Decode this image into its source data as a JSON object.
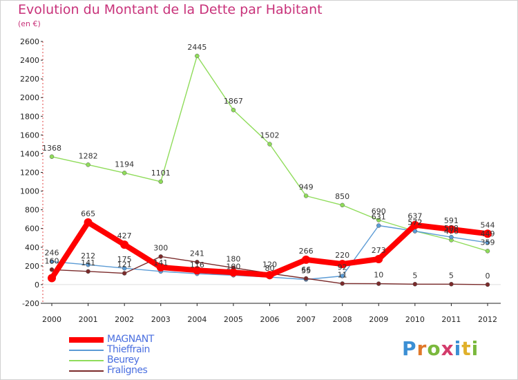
{
  "header": {
    "title": "Evolution du Montant de la Dette par Habitant",
    "subtitle": "(en €)"
  },
  "logo": {
    "text": "Proxiti",
    "letter_colors": [
      "#3b8fd4",
      "#e0782a",
      "#7ab83c",
      "#d33b6b",
      "#3b8fd4",
      "#e0b02a",
      "#7ab83c"
    ]
  },
  "chart_data": {
    "type": "line",
    "categories": [
      "2000",
      "2001",
      "2002",
      "2003",
      "2004",
      "2005",
      "2006",
      "2007",
      "2008",
      "2009",
      "2010",
      "2011",
      "2012"
    ],
    "ylim": [
      -200,
      2600
    ],
    "yticks": [
      -200,
      0,
      200,
      400,
      600,
      800,
      1000,
      1200,
      1400,
      1600,
      1800,
      2000,
      2200,
      2400,
      2600
    ],
    "grid": false,
    "legend_position": "bottom-left",
    "series": [
      {
        "name": "MAGNANT",
        "color": "#ff0000",
        "values": [
          70,
          665,
          427,
          185,
          153,
          130,
          102,
          266,
          220,
          273,
          637,
          591,
          544
        ],
        "labels": [
          "",
          "665",
          "427",
          "",
          "",
          "",
          "",
          "266",
          "220",
          "273",
          "637",
          "591",
          "544"
        ]
      },
      {
        "name": "Thieffrain",
        "color": "#5b9bd5",
        "values": [
          246,
          212,
          175,
          141,
          116,
          100,
          80,
          55,
          92,
          631,
          572,
          508,
          449
        ],
        "labels": [
          "246",
          "212",
          "175",
          "141",
          "116",
          "100",
          "80",
          "55",
          "92",
          "631",
          "572",
          "508",
          "449"
        ]
      },
      {
        "name": "Beurey",
        "color": "#8fdc5a",
        "values": [
          1368,
          1282,
          1194,
          1101,
          2445,
          1867,
          1502,
          949,
          850,
          690,
          572,
          476,
          359
        ],
        "labels": [
          "1368",
          "1282",
          "1194",
          "1101",
          "2445",
          "1867",
          "1502",
          "949",
          "850",
          "690",
          "572",
          "476",
          "359"
        ]
      },
      {
        "name": "Fralignes",
        "color": "#7a2a2a",
        "values": [
          160,
          141,
          121,
          300,
          241,
          180,
          120,
          66,
          11,
          10,
          5,
          5,
          0
        ],
        "labels": [
          "160",
          "141",
          "121",
          "300",
          "241",
          "180",
          "120",
          "66",
          "11",
          "10",
          "5",
          "5",
          "0"
        ]
      }
    ]
  }
}
